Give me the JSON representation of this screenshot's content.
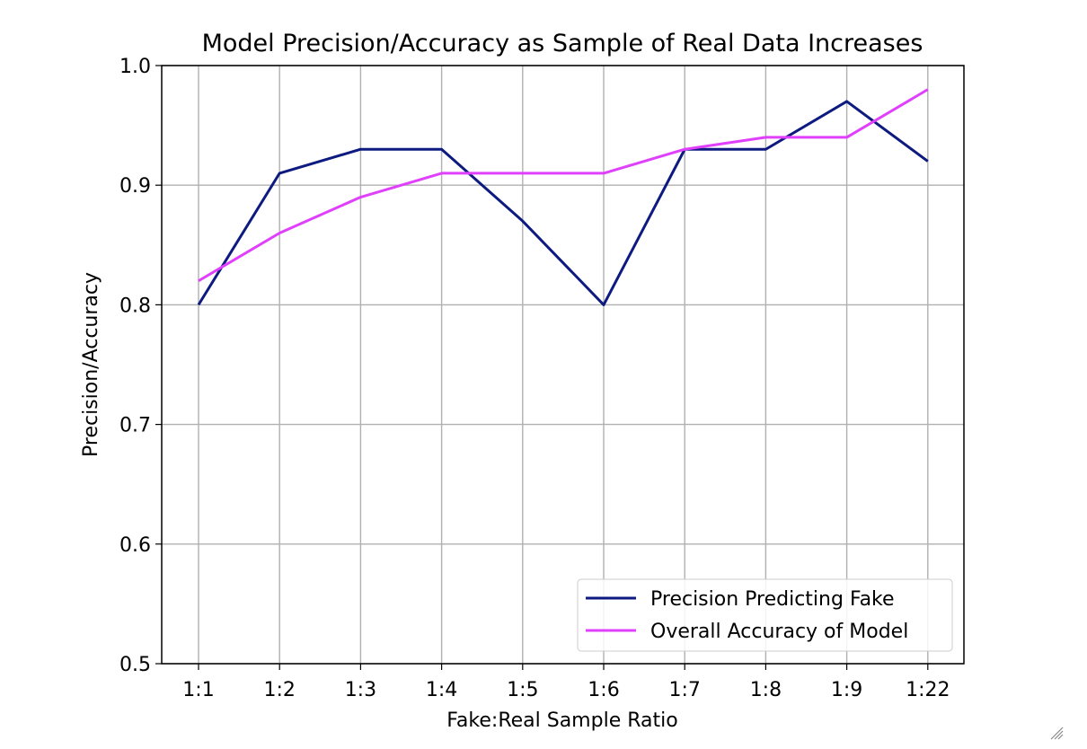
{
  "chart_data": {
    "type": "line",
    "title": "Model Precision/Accuracy as Sample of Real Data Increases",
    "xlabel": "Fake:Real Sample Ratio",
    "ylabel": "Precision/Accuracy",
    "categories": [
      "1:1",
      "1:2",
      "1:3",
      "1:4",
      "1:5",
      "1:6",
      "1:7",
      "1:8",
      "1:9",
      "1:22"
    ],
    "ylim": [
      0.5,
      1.0
    ],
    "yticks": [
      "0.5",
      "0.6",
      "0.7",
      "0.8",
      "0.9",
      "1.0"
    ],
    "grid": true,
    "legend_position": "lower-right",
    "series": [
      {
        "name": "Precision Predicting Fake",
        "color": "#0d1a80",
        "values": [
          0.8,
          0.91,
          0.93,
          0.93,
          0.87,
          0.8,
          0.93,
          0.93,
          0.97,
          0.92
        ]
      },
      {
        "name": "Overall Accuracy of Model",
        "color": "#e040fb",
        "values": [
          0.82,
          0.86,
          0.89,
          0.91,
          0.91,
          0.91,
          0.93,
          0.94,
          0.94,
          0.98
        ]
      }
    ]
  },
  "icons": {
    "resize": "resize-grip-icon"
  }
}
